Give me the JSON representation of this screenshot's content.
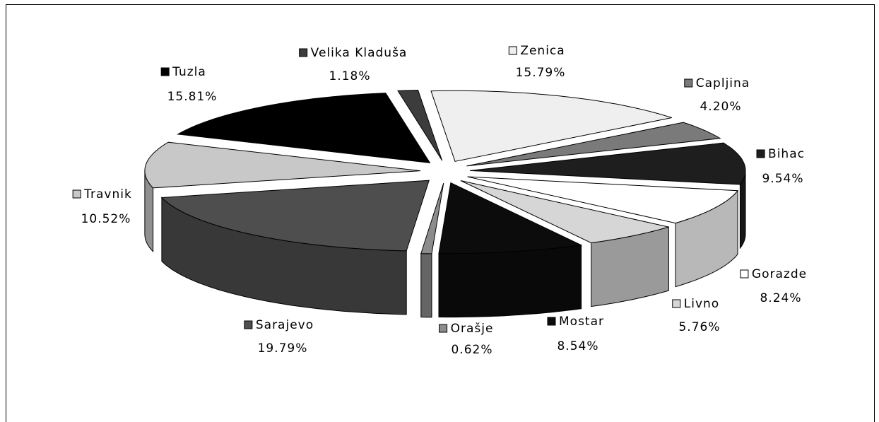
{
  "chart_data": {
    "type": "pie",
    "three_d": true,
    "exploded": true,
    "categories": [
      "Zenica",
      "Capljina",
      "Bihac",
      "Gorazde",
      "Livno",
      "Mostar",
      "Orašje",
      "Sarajevo",
      "Travnik",
      "Tuzla",
      "Velika Kladuša"
    ],
    "values": [
      15.79,
      4.2,
      9.54,
      8.24,
      5.76,
      8.54,
      0.62,
      19.79,
      10.52,
      15.81,
      1.18
    ],
    "value_labels": [
      "15.79%",
      "4.20%",
      "9.54%",
      "8.24%",
      "5.76%",
      "8.54%",
      "0.62%",
      "19.79%",
      "10.52%",
      "15.81%",
      "1.18%"
    ],
    "colors": [
      "#efefef",
      "#7a7a7a",
      "#1e1e1e",
      "#ffffff",
      "#d6d6d6",
      "#0c0c0c",
      "#8c8c8c",
      "#4e4e4e",
      "#c8c8c8",
      "#000000",
      "#3c3c3c"
    ]
  }
}
